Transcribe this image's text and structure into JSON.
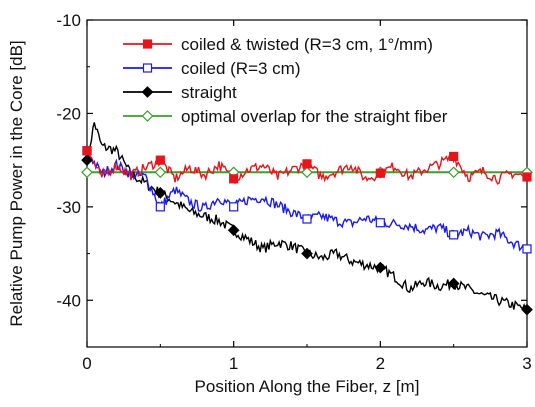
{
  "chart_data": {
    "type": "line",
    "title": "",
    "xlabel": "Position Along the Fiber, z [m]",
    "ylabel": "Relative Pump Power in the Core [dB]",
    "xlim": [
      0,
      3
    ],
    "ylim": [
      -45,
      -10
    ],
    "xticks": [
      0,
      1,
      2,
      3
    ],
    "yticks": [
      -10,
      -20,
      -30,
      -40
    ],
    "grid": false,
    "legend_position": "top-right",
    "series": [
      {
        "name": "coiled & twisted (R=3 cm, 1°/mm)",
        "color": "#e8141b",
        "marker": "filled-square",
        "x": [
          0,
          0.1,
          0.2,
          0.3,
          0.4,
          0.5,
          0.6,
          0.7,
          0.8,
          0.9,
          1.0,
          1.1,
          1.2,
          1.3,
          1.4,
          1.5,
          1.6,
          1.7,
          1.8,
          1.9,
          2.0,
          2.1,
          2.2,
          2.3,
          2.4,
          2.5,
          2.6,
          2.7,
          2.8,
          2.9,
          3.0
        ],
        "y": [
          -24.0,
          -26.8,
          -25.6,
          -26.6,
          -25.8,
          -25.0,
          -27.0,
          -25.8,
          -26.6,
          -25.5,
          -27.0,
          -26.0,
          -25.6,
          -26.8,
          -26.0,
          -25.4,
          -26.8,
          -26.2,
          -25.5,
          -27.0,
          -26.4,
          -25.6,
          -26.8,
          -26.0,
          -25.4,
          -24.6,
          -26.8,
          -26.2,
          -27.0,
          -26.4,
          -26.8
        ],
        "markers_at": [
          0,
          0.5,
          1.0,
          1.5,
          2.0,
          2.5,
          3.0
        ]
      },
      {
        "name": "coiled (R=3 cm)",
        "color": "#1a1aee",
        "marker": "open-square",
        "x": [
          0,
          0.1,
          0.2,
          0.3,
          0.4,
          0.5,
          0.6,
          0.7,
          0.8,
          0.9,
          1.0,
          1.1,
          1.2,
          1.3,
          1.4,
          1.5,
          1.6,
          1.7,
          1.8,
          1.9,
          2.0,
          2.1,
          2.2,
          2.3,
          2.4,
          2.5,
          2.6,
          2.7,
          2.8,
          2.9,
          3.0
        ],
        "y": [
          -24.0,
          -26.5,
          -25.5,
          -26.5,
          -26.8,
          -30.0,
          -28.2,
          -29.5,
          -30.2,
          -29.0,
          -30.0,
          -29.2,
          -29.0,
          -29.8,
          -30.6,
          -31.3,
          -31.0,
          -31.5,
          -31.8,
          -31.2,
          -31.7,
          -31.8,
          -32.0,
          -32.5,
          -32.2,
          -33.0,
          -32.6,
          -33.2,
          -32.8,
          -33.8,
          -34.5
        ],
        "markers_at": [
          0,
          0.5,
          1.0,
          1.5,
          2.0,
          2.5,
          3.0
        ]
      },
      {
        "name": "straight",
        "color": "#000000",
        "marker": "filled-diamond",
        "x": [
          0,
          0.05,
          0.1,
          0.2,
          0.3,
          0.4,
          0.5,
          0.6,
          0.7,
          0.8,
          0.9,
          1.0,
          1.1,
          1.2,
          1.3,
          1.4,
          1.5,
          1.6,
          1.7,
          1.8,
          1.9,
          2.0,
          2.1,
          2.2,
          2.3,
          2.4,
          2.5,
          2.6,
          2.7,
          2.8,
          2.9,
          3.0
        ],
        "y": [
          -25.0,
          -21.0,
          -23.5,
          -24.0,
          -26.5,
          -27.5,
          -28.5,
          -29.5,
          -30.5,
          -31.0,
          -31.5,
          -32.5,
          -33.5,
          -34.5,
          -33.8,
          -34.2,
          -35.0,
          -35.5,
          -35.0,
          -35.8,
          -36.2,
          -36.5,
          -37.5,
          -38.8,
          -38.0,
          -38.5,
          -38.2,
          -38.8,
          -39.5,
          -40.0,
          -40.5,
          -41.0
        ],
        "markers_at": [
          0,
          0.5,
          1.0,
          1.5,
          2.0,
          2.5,
          3.0
        ]
      },
      {
        "name": "optimal overlap for the straight fiber",
        "color": "#3aa02a",
        "marker": "open-diamond",
        "x": [
          0,
          3
        ],
        "y": [
          -26.3,
          -26.3
        ],
        "markers_at": [
          0,
          0.5,
          1.0,
          1.5,
          2.0,
          2.5,
          3.0
        ]
      }
    ]
  }
}
